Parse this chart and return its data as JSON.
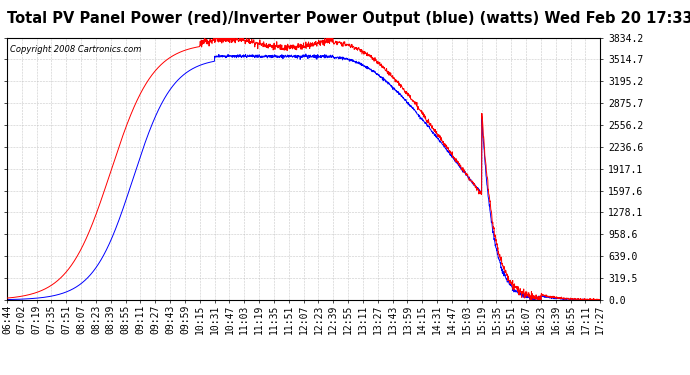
{
  "title": "Total PV Panel Power (red)/Inverter Power Output (blue) (watts) Wed Feb 20 17:33",
  "copyright": "Copyright 2008 Cartronics.com",
  "ylabel_values": [
    0.0,
    319.5,
    639.0,
    958.6,
    1278.1,
    1597.6,
    1917.1,
    2236.6,
    2556.2,
    2875.7,
    3195.2,
    3514.7,
    3834.2
  ],
  "ymax": 3834.2,
  "ymin": 0.0,
  "background_color": "#ffffff",
  "grid_color": "#bbbbbb",
  "title_fontsize": 10.5,
  "tick_label_fontsize": 7,
  "x_tick_labels": [
    "06:44",
    "07:02",
    "07:19",
    "07:35",
    "07:51",
    "08:07",
    "08:23",
    "08:39",
    "08:55",
    "09:11",
    "09:27",
    "09:43",
    "09:59",
    "10:15",
    "10:31",
    "10:47",
    "11:03",
    "11:19",
    "11:35",
    "11:51",
    "12:07",
    "12:23",
    "12:39",
    "12:55",
    "13:11",
    "13:27",
    "13:43",
    "13:59",
    "14:15",
    "14:31",
    "14:47",
    "15:03",
    "15:19",
    "15:35",
    "15:51",
    "16:07",
    "16:23",
    "16:39",
    "16:55",
    "17:11",
    "17:27"
  ],
  "pv_color": "red",
  "inv_color": "blue",
  "pv_peak": 3834.2,
  "inv_plateau": 3580.0,
  "inv_clip": 3580.0
}
